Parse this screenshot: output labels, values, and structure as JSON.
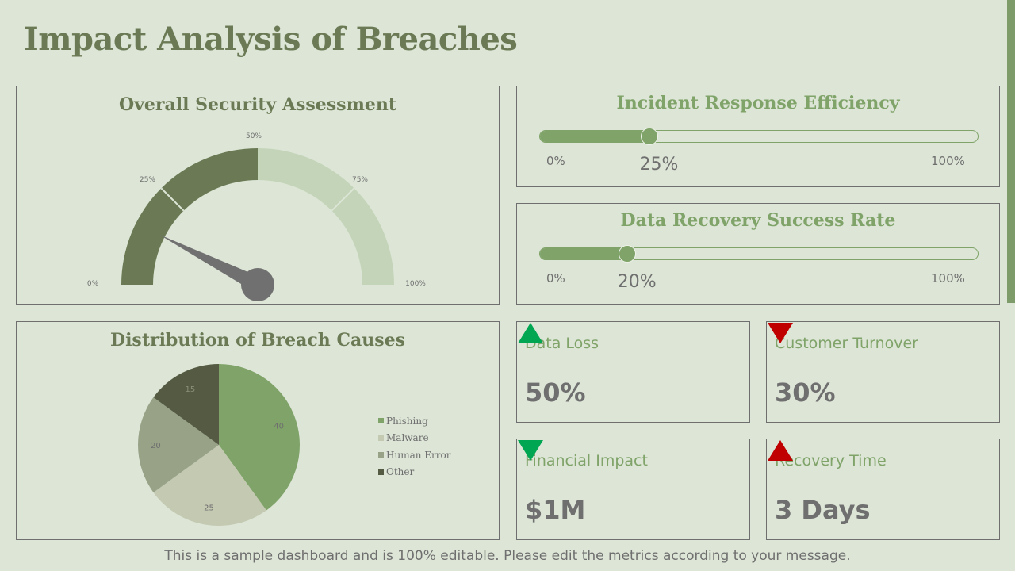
{
  "title": "Impact Analysis of Breaches",
  "footer": "This is a sample dashboard and is 100% editable. Please edit the metrics according to your message.",
  "colors": {
    "background": "#dce5d6",
    "accent_green": "#7fa368",
    "dark_olive": "#6b7a55",
    "light_sage": "#c4d4b8",
    "up_green": "#00a651",
    "down_red": "#c00000",
    "needle_gray": "#707070"
  },
  "gauge": {
    "title": "Overall Security Assessment",
    "tick_labels": [
      "0%",
      "25%",
      "50%",
      "75%",
      "100%"
    ],
    "value": 0.15
  },
  "incident_response": {
    "title": "Incident Response Efficiency",
    "min_label": "0%",
    "max_label": "100%",
    "value_label": "25%",
    "value": 0.25
  },
  "data_recovery": {
    "title": "Data Recovery Success Rate",
    "min_label": "0%",
    "max_label": "100%",
    "value_label": "20%",
    "value": 0.2
  },
  "pie": {
    "title": "Distribution of Breach Causes"
  },
  "chart_data": {
    "type": "pie",
    "title": "Distribution of Breach Causes",
    "categories": [
      "Phishing",
      "Malware",
      "Human Error",
      "Other"
    ],
    "values": [
      40,
      25,
      20,
      15
    ],
    "value_labels": [
      "40",
      "25",
      "20",
      "15"
    ],
    "colors": [
      "#7fa368",
      "#c4c9b2",
      "#98a287",
      "#555a42"
    ],
    "legend_position": "right"
  },
  "kpis": [
    {
      "label": "Data Loss",
      "value": "50%",
      "arrow": "up",
      "arrow_color": "#00a651"
    },
    {
      "label": "Customer Turnover",
      "value": "30%",
      "arrow": "down",
      "arrow_color": "#c00000"
    },
    {
      "label": "Financial Impact",
      "value": "$1M",
      "arrow": "down",
      "arrow_color": "#00a651"
    },
    {
      "label": "Recovery Time",
      "value": "3 Days",
      "arrow": "up",
      "arrow_color": "#c00000"
    }
  ]
}
